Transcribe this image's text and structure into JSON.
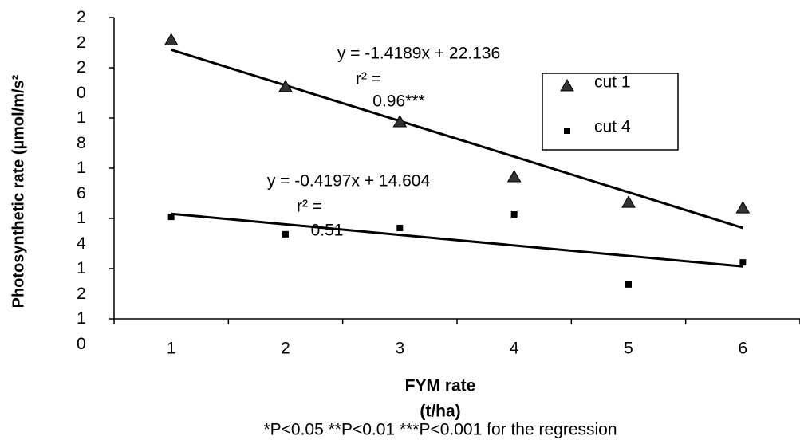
{
  "chart_data": {
    "type": "scatter",
    "x_label": "FYM rate",
    "x_label_unit": "(t/ha)",
    "y_label": "Photosynthetic rate (µmol/m/s²",
    "footnote": "*P<0.05 **P<0.01 ***P<0.001 for the regression",
    "categories": [
      "1",
      "2",
      "3",
      "4",
      "5",
      "6"
    ],
    "ylim": [
      10,
      22
    ],
    "yticks": [
      10,
      12,
      14,
      16,
      18,
      20,
      22
    ],
    "series": [
      {
        "name": "cut 1",
        "marker": "triangle",
        "color": "#000000",
        "values": [
          21.1,
          19.24,
          17.84,
          15.65,
          14.63,
          14.41
        ],
        "trendline": {
          "slope": -1.4189,
          "intercept": 22.136,
          "equation": "y = -1.4189x + 22.136",
          "r2_label": "r² =",
          "r2": "0.96***"
        }
      },
      {
        "name": "cut 4",
        "marker": "square",
        "color": "#000000",
        "values": [
          14.06,
          13.37,
          13.62,
          14.16,
          11.37,
          12.25
        ],
        "trendline": {
          "slope": -0.4197,
          "intercept": 14.604,
          "equation": "y = -0.4197x + 14.604",
          "r2_label": "r² =",
          "r2": "0.51"
        }
      }
    ]
  }
}
